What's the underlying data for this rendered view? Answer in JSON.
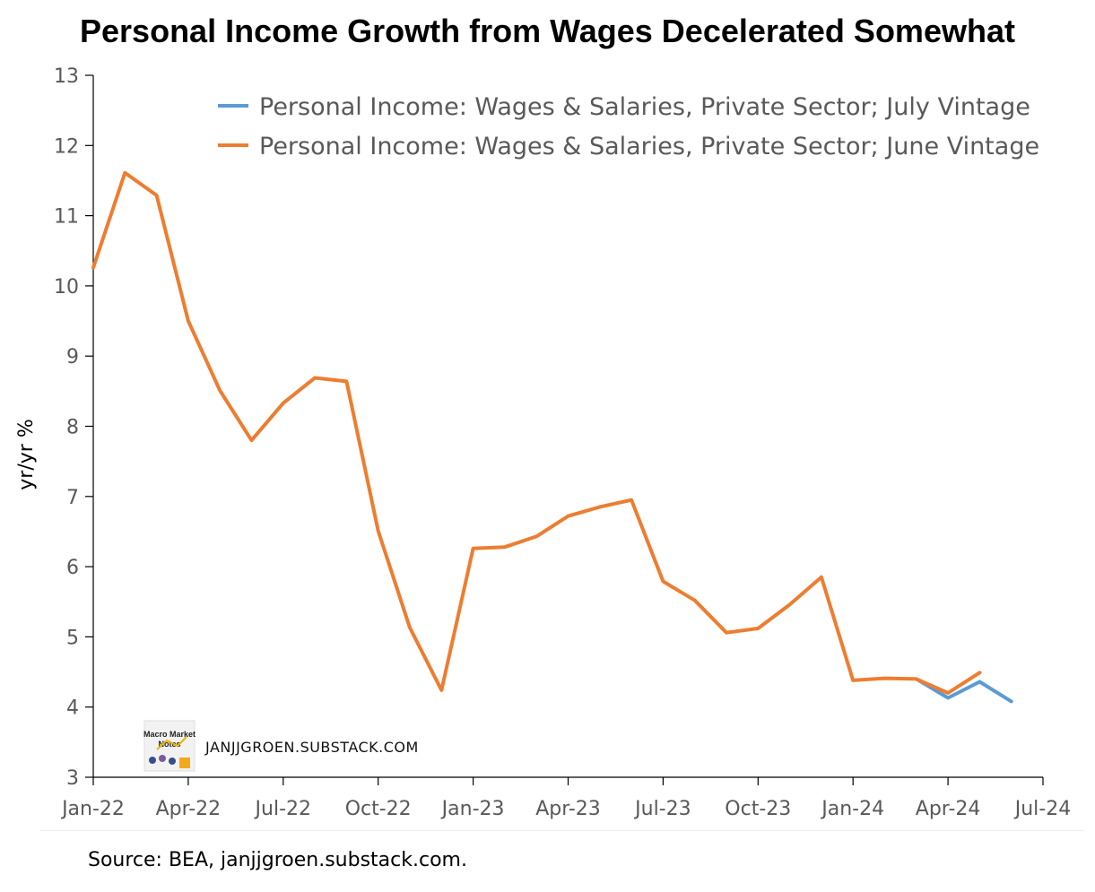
{
  "chart_data": {
    "type": "line",
    "title": "Personal Income Growth from Wages Decelerated Somewhat",
    "ylabel": "yr/yr %",
    "xlabel": "",
    "ylim": [
      3,
      13
    ],
    "yticks": [
      3,
      4,
      5,
      6,
      7,
      8,
      9,
      10,
      11,
      12,
      13
    ],
    "x": [
      "2022-01",
      "2022-02",
      "2022-03",
      "2022-04",
      "2022-05",
      "2022-06",
      "2022-07",
      "2022-08",
      "2022-09",
      "2022-10",
      "2022-11",
      "2022-12",
      "2023-01",
      "2023-02",
      "2023-03",
      "2023-04",
      "2023-05",
      "2023-06",
      "2023-07",
      "2023-08",
      "2023-09",
      "2023-10",
      "2023-11",
      "2023-12",
      "2024-01",
      "2024-02",
      "2024-03",
      "2024-04",
      "2024-05",
      "2024-06"
    ],
    "xticks": [
      "Jan-22",
      "Apr-22",
      "Jul-22",
      "Oct-22",
      "Jan-23",
      "Apr-23",
      "Jul-23",
      "Oct-23",
      "Jan-24",
      "Apr-24",
      "Jul-24"
    ],
    "grid": false,
    "legend_position": "top-right",
    "series": [
      {
        "name": "Personal Income: Wages & Salaries, Private Sector; July Vintage",
        "color": "#5b9bd5",
        "x": [
          "2024-03",
          "2024-04",
          "2024-05",
          "2024-06"
        ],
        "values": [
          4.4,
          4.13,
          4.36,
          4.08
        ]
      },
      {
        "name": "Personal Income: Wages & Salaries, Private Sector; June Vintage",
        "color": "#ed7d31",
        "x": [
          "2022-01",
          "2022-02",
          "2022-03",
          "2022-04",
          "2022-05",
          "2022-06",
          "2022-07",
          "2022-08",
          "2022-09",
          "2022-10",
          "2022-11",
          "2022-12",
          "2023-01",
          "2023-02",
          "2023-03",
          "2023-04",
          "2023-05",
          "2023-06",
          "2023-07",
          "2023-08",
          "2023-09",
          "2023-10",
          "2023-11",
          "2023-12",
          "2024-01",
          "2024-02",
          "2024-03",
          "2024-04",
          "2024-05"
        ],
        "values": [
          10.26,
          11.61,
          11.29,
          9.5,
          8.51,
          7.8,
          8.33,
          8.69,
          8.64,
          6.51,
          5.13,
          4.24,
          6.26,
          6.28,
          6.43,
          6.72,
          6.85,
          6.95,
          5.79,
          5.52,
          5.06,
          5.12,
          5.46,
          5.85,
          4.38,
          4.41,
          4.4,
          4.2,
          4.49
        ]
      }
    ]
  },
  "watermark": {
    "text": "JANJJGROEN.SUBSTACK.COM",
    "logo_text": "Macro Market Notes"
  },
  "source": "Source: BEA, janjjgroen.substack.com."
}
